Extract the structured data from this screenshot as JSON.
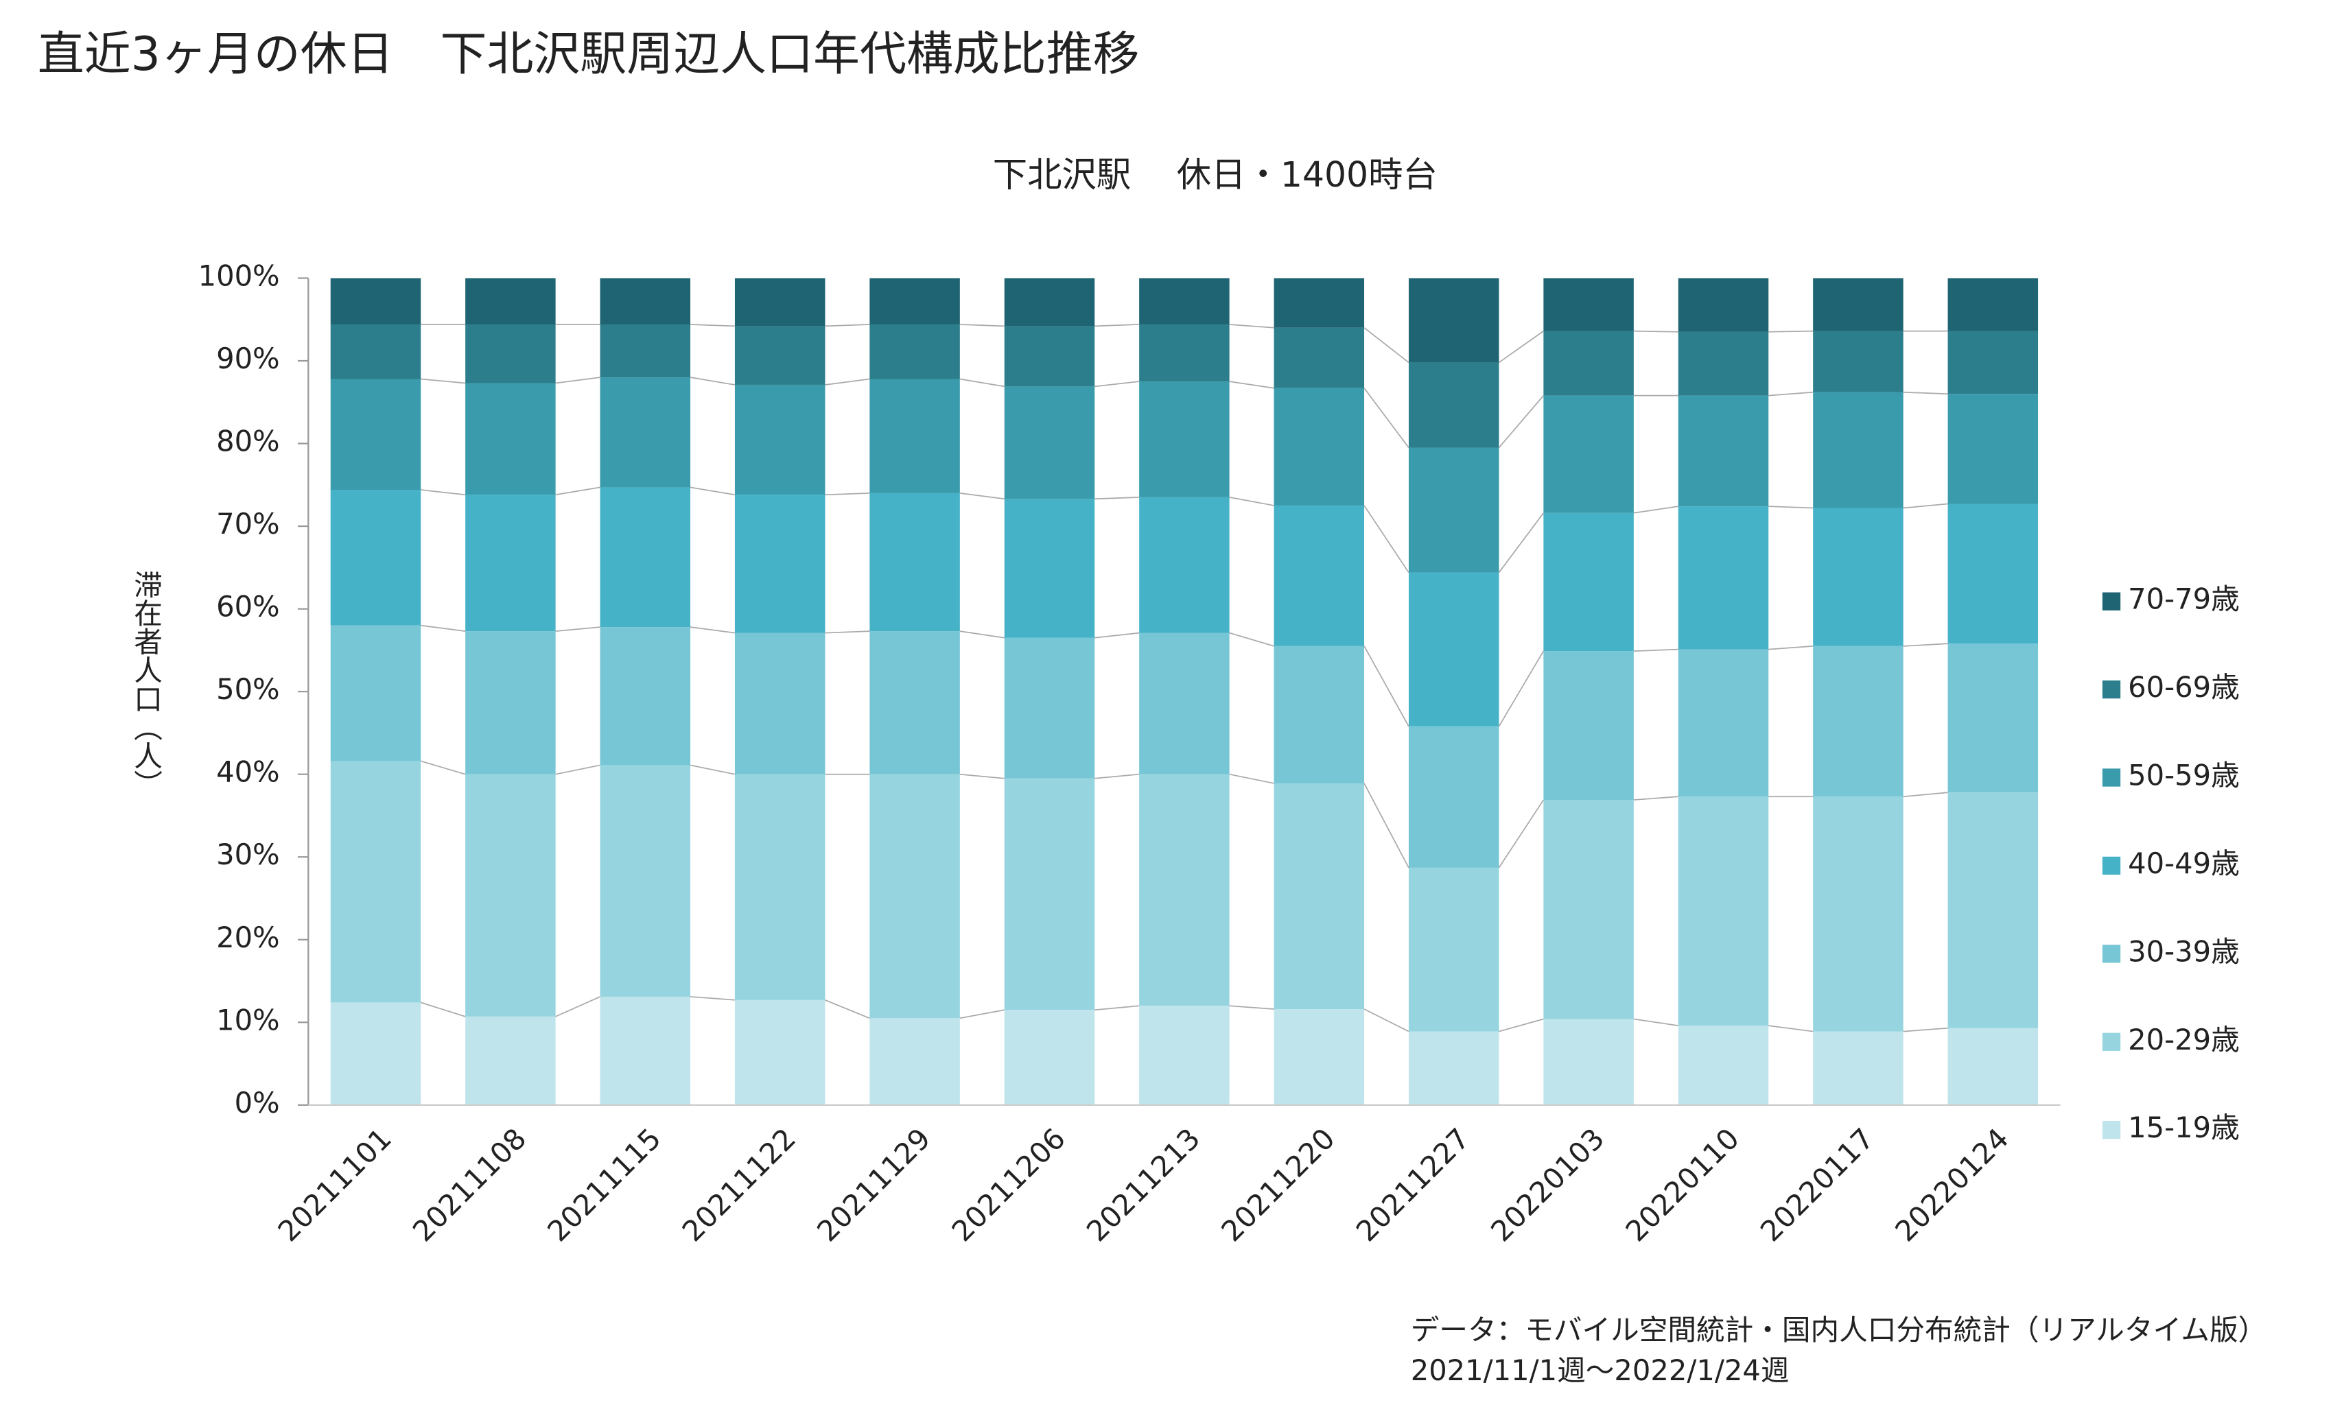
{
  "chart_data": {
    "type": "stacked_bar",
    "title": "直近3ヶ月の休日　下北沢駅周辺人口年代構成比推移",
    "subtitle": "下北沢駅　 休日・1400時台",
    "y_label": "滞在者人口（人）",
    "source": [
      "データ：モバイル空間統計・国内人口分布統計（リアルタイム版）",
      "2021/11/1週～2022/1/24週"
    ],
    "categories": [
      "20211101",
      "20211108",
      "20211115",
      "20211122",
      "20211129",
      "20211206",
      "20211213",
      "20211220",
      "20211227",
      "20220103",
      "20220110",
      "20220117",
      "20220124"
    ],
    "series": [
      {
        "name": "15-19歳",
        "color": "#bfe4ec",
        "values": [
          12.4,
          10.7,
          13.1,
          12.7,
          10.5,
          11.5,
          12.0,
          11.6,
          8.9,
          10.4,
          9.6,
          8.9,
          9.3
        ]
      },
      {
        "name": "20-29歳",
        "color": "#96d5e0",
        "values": [
          29.2,
          29.3,
          28.0,
          27.3,
          29.5,
          28.0,
          28.0,
          27.3,
          19.8,
          26.5,
          27.7,
          28.4,
          28.5
        ]
      },
      {
        "name": "30-39歳",
        "color": "#77c6d6",
        "values": [
          16.4,
          17.3,
          16.7,
          17.1,
          17.3,
          17.0,
          17.1,
          16.6,
          17.1,
          18.0,
          17.8,
          18.2,
          18.0
        ]
      },
      {
        "name": "40-49歳",
        "color": "#45b2c8",
        "values": [
          16.4,
          16.5,
          16.9,
          16.7,
          16.7,
          16.8,
          16.4,
          17.0,
          18.6,
          16.7,
          17.3,
          16.7,
          16.9
        ]
      },
      {
        "name": "50-59歳",
        "color": "#3a9bad",
        "values": [
          13.4,
          13.5,
          13.3,
          13.3,
          13.8,
          13.6,
          14.0,
          14.2,
          15.1,
          14.2,
          13.4,
          14.0,
          13.3
        ]
      },
      {
        "name": "60-69歳",
        "color": "#2c7e8c",
        "values": [
          6.6,
          7.1,
          6.4,
          7.1,
          6.6,
          7.3,
          6.9,
          7.3,
          10.3,
          7.8,
          7.7,
          7.4,
          7.6
        ]
      },
      {
        "name": "70-79歳",
        "color": "#1f6472",
        "values": [
          5.6,
          5.6,
          5.6,
          5.8,
          5.6,
          5.8,
          5.6,
          6.0,
          10.2,
          6.4,
          6.5,
          6.4,
          6.4
        ]
      }
    ],
    "ylim": [
      0,
      100
    ],
    "yticks": [
      {
        "value": 0,
        "label": "0%"
      },
      {
        "value": 10,
        "label": "10%"
      },
      {
        "value": 20,
        "label": "20%"
      },
      {
        "value": 30,
        "label": "30%"
      },
      {
        "value": 40,
        "label": "40%"
      },
      {
        "value": 50,
        "label": "50%"
      },
      {
        "value": 60,
        "label": "60%"
      },
      {
        "value": 70,
        "label": "70%"
      },
      {
        "value": 80,
        "label": "80%"
      },
      {
        "value": 90,
        "label": "90%"
      },
      {
        "value": 100,
        "label": "100%"
      }
    ],
    "legend": "right"
  }
}
